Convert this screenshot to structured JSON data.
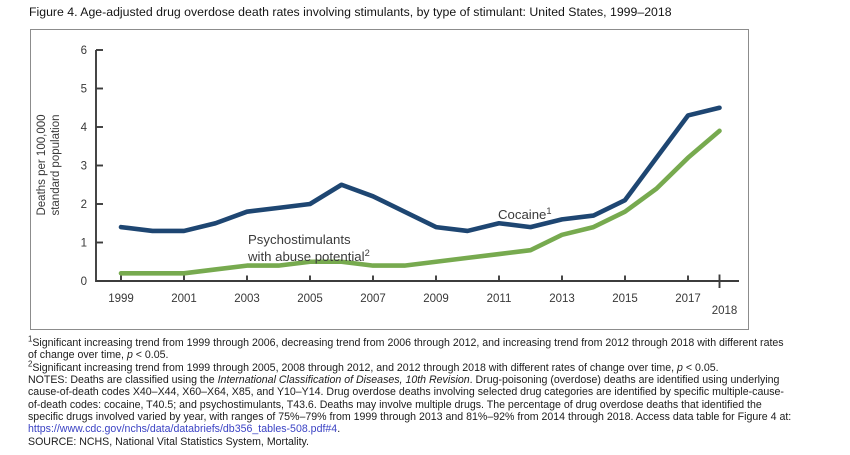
{
  "page": {
    "title": "Figure 4. Age-adjusted drug overdose death rates involving stimulants, by type of stimulant: United States, 1999–2018"
  },
  "chart_data": {
    "type": "line",
    "title": "Age-adjusted drug overdose death rates involving stimulants, by type of stimulant: United States, 1999–2018",
    "ylabel": "Deaths per 100,000 standard population",
    "ylabel_lines": [
      "Deaths per 100,000",
      "standard population"
    ],
    "xlabel": "",
    "ylim": [
      0,
      6
    ],
    "y_ticks": [
      0,
      1,
      2,
      3,
      4,
      5,
      6
    ],
    "grid": false,
    "legend_position": "inline annotations",
    "x": [
      1999,
      2000,
      2001,
      2002,
      2003,
      2004,
      2005,
      2006,
      2007,
      2008,
      2009,
      2010,
      2011,
      2012,
      2013,
      2014,
      2015,
      2016,
      2017,
      2018
    ],
    "x_tick_years": [
      1999,
      2001,
      2003,
      2005,
      2007,
      2009,
      2011,
      2013,
      2015,
      2017,
      2018
    ],
    "series": [
      {
        "key": "cocaine",
        "name": "Cocaine",
        "annotation_lines": [
          "Cocaine"
        ],
        "annotation_sup": "1",
        "color": "#1e4672",
        "values": [
          1.4,
          1.3,
          1.3,
          1.5,
          1.8,
          1.9,
          2.0,
          2.5,
          2.2,
          1.8,
          1.4,
          1.3,
          1.5,
          1.4,
          1.6,
          1.7,
          2.1,
          3.2,
          4.3,
          4.5
        ]
      },
      {
        "key": "psychostimulants",
        "name": "Psychostimulants with abuse potential",
        "annotation_lines": [
          "Psychostimulants",
          "with abuse potential"
        ],
        "annotation_sup": "2",
        "color": "#77aa4f",
        "values": [
          0.2,
          0.2,
          0.2,
          0.3,
          0.4,
          0.4,
          0.5,
          0.5,
          0.4,
          0.4,
          0.5,
          0.6,
          0.7,
          0.8,
          1.2,
          1.4,
          1.8,
          2.4,
          3.2,
          3.9
        ]
      }
    ]
  },
  "footnotes": [
    {
      "name": "footnote-1",
      "segments": [
        {
          "t": "1",
          "sup": true
        },
        {
          "t": "Significant increasing trend from 1999 through 2006, decreasing trend from 2006 through 2012, and increasing trend from 2012 through 2018 with different rates of change over time, "
        },
        {
          "t": "p",
          "i": true
        },
        {
          "t": " < 0.05."
        }
      ]
    },
    {
      "name": "footnote-2",
      "segments": [
        {
          "t": "2",
          "sup": true
        },
        {
          "t": "Significant increasing trend from 1999 through 2005, 2008 through 2012, and 2012 through 2018 with different rates of change over time, "
        },
        {
          "t": "p",
          "i": true
        },
        {
          "t": " < 0.05."
        }
      ]
    },
    {
      "name": "notes",
      "segments": [
        {
          "t": "NOTES: Deaths are classified using the "
        },
        {
          "t": "International Classification of Diseases, 10th Revision",
          "i": true
        },
        {
          "t": ". Drug-poisoning (overdose) deaths are identified using underlying cause-of-death codes X40–X44, X60–X64, X85, and Y10–Y14. Drug overdose deaths involving selected drug categories are identified by specific multiple-cause-of-death codes: cocaine, T40.5; and psychostimulants, T43.6. Deaths may involve multiple drugs. The percentage of drug overdose deaths that identified the specific drugs involved varied by year, with ranges of 75%–79% from 1999 through 2013 and 81%–92% from 2014 through 2018. Access data table for Figure 4 at: "
        },
        {
          "t": "https://www.cdc.gov/nchs/data/databriefs/db356_tables-508.pdf#4",
          "link": true
        },
        {
          "t": "."
        }
      ]
    },
    {
      "name": "source",
      "segments": [
        {
          "t": "SOURCE: NCHS, National Vital Statistics System, Mortality."
        }
      ]
    }
  ]
}
